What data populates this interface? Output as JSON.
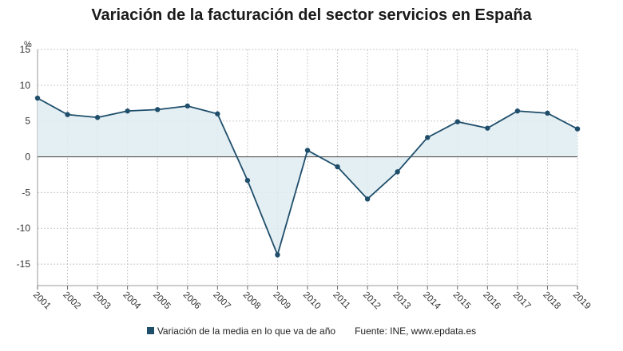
{
  "title": "Variación de la facturación del sector servicios en España",
  "unit": "%",
  "legend": {
    "label": "Variación de la media en lo que va de año"
  },
  "source": "Fuente: INE, www.epdata.es",
  "colors": {
    "line": "#1f4e6b",
    "fill": "#dfecf1",
    "grid": "#c8c8c8",
    "zero": "#555555"
  },
  "chart_data": {
    "type": "area",
    "x": [
      "2001",
      "2002",
      "2003",
      "2004",
      "2005",
      "2006",
      "2007",
      "2008",
      "2009",
      "2010",
      "2011",
      "2012",
      "2013",
      "2014",
      "2015",
      "2016",
      "2017",
      "2018",
      "2019"
    ],
    "series": [
      {
        "name": "Variación de la media en lo que va de año",
        "values": [
          8.2,
          5.9,
          5.5,
          6.4,
          6.6,
          7.1,
          6.0,
          -3.3,
          -13.7,
          0.9,
          -1.4,
          -5.9,
          -2.1,
          2.7,
          4.9,
          4.0,
          6.4,
          6.1,
          3.9
        ]
      }
    ],
    "yticks": [
      15,
      10,
      5,
      0,
      -5,
      -10,
      -15
    ],
    "ylim": [
      -18,
      15
    ],
    "grid": true
  }
}
